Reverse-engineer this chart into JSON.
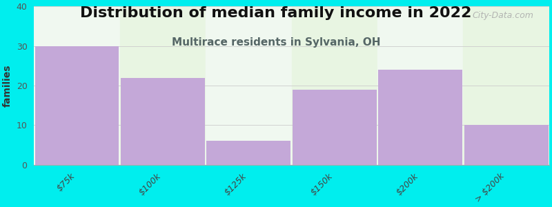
{
  "title": "Distribution of median family income in 2022",
  "subtitle": "Multirace residents in Sylvania, OH",
  "categories": [
    "$75k",
    "$100k",
    "$125k",
    "$150k",
    "$200k",
    "> $200k"
  ],
  "values": [
    30,
    22,
    6,
    19,
    24,
    10
  ],
  "bar_color": "#c4a8d8",
  "background_color": "#00eeee",
  "plot_bg_even": "#e8f5e2",
  "plot_bg_odd": "#f0f8f0",
  "ylabel": "families",
  "ylim": [
    0,
    40
  ],
  "yticks": [
    0,
    10,
    20,
    30,
    40
  ],
  "title_fontsize": 16,
  "subtitle_fontsize": 11,
  "subtitle_color": "#556666",
  "watermark": "City-Data.com",
  "bar_width": 0.98
}
